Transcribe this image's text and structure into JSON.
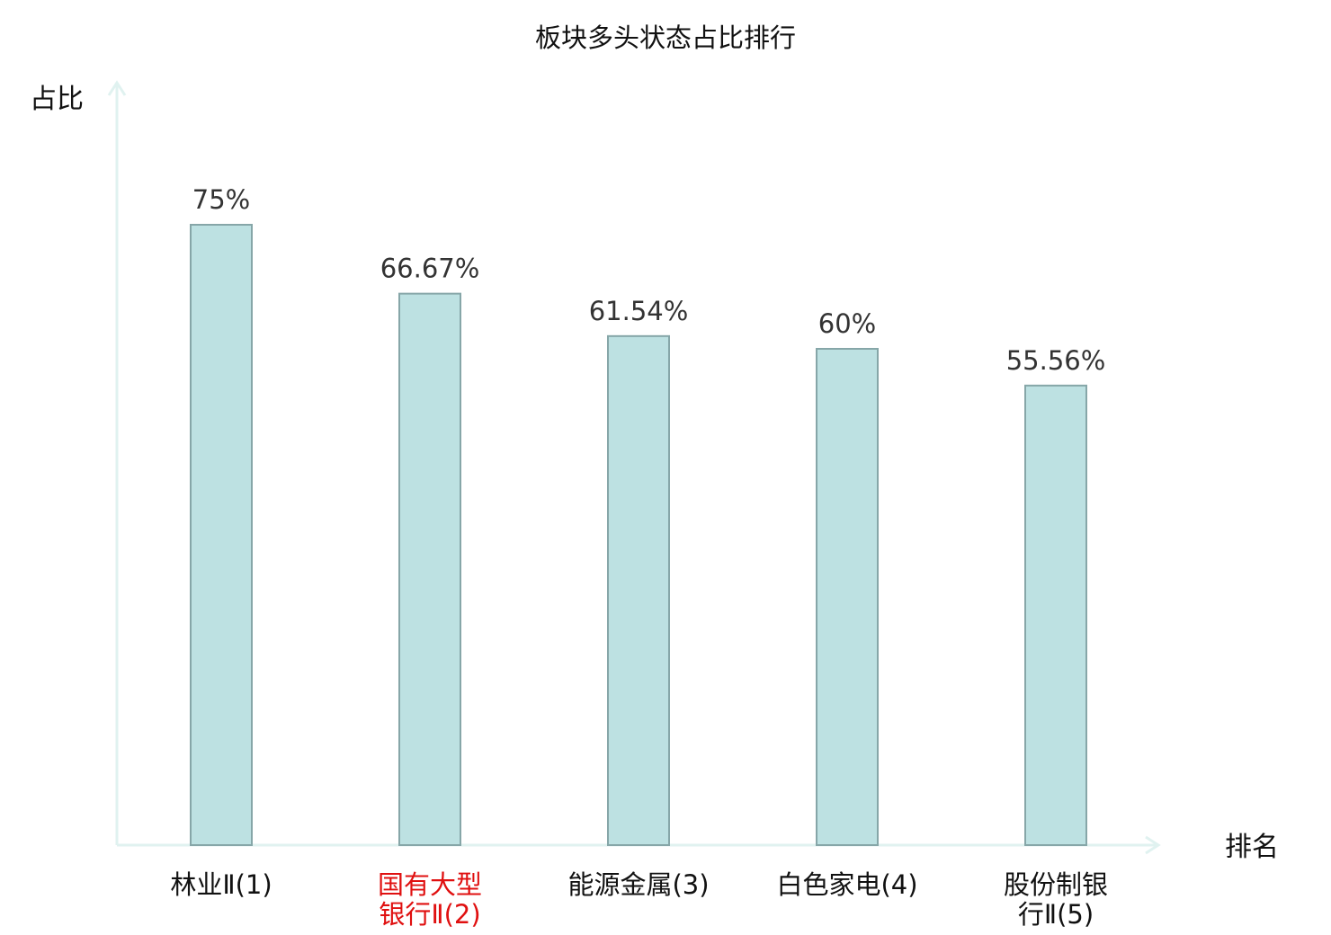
{
  "chart_data": {
    "type": "bar",
    "title": "板块多头状态占比排行",
    "ylabel": "占比",
    "xlabel": "排名",
    "categories": [
      {
        "lines": [
          "林业Ⅱ(1)"
        ],
        "highlight": false
      },
      {
        "lines": [
          "国有大型",
          "银行Ⅱ(2)"
        ],
        "highlight": true
      },
      {
        "lines": [
          "能源金属(3)"
        ],
        "highlight": false
      },
      {
        "lines": [
          "白色家电(4)"
        ],
        "highlight": false
      },
      {
        "lines": [
          "股份制银",
          "行Ⅱ(5)"
        ],
        "highlight": false
      }
    ],
    "values": [
      75,
      66.67,
      61.54,
      60,
      55.56
    ],
    "value_labels": [
      "75%",
      "66.67%",
      "61.54%",
      "60%",
      "55.56%"
    ],
    "ylim": [
      0,
      100
    ],
    "grid": false,
    "colors": {
      "bar_fill": "#bde1e2",
      "bar_stroke": "#86a6a8",
      "axis": "#e0f2f0",
      "label_text": "#333333",
      "highlight_text": "#e01010"
    }
  }
}
